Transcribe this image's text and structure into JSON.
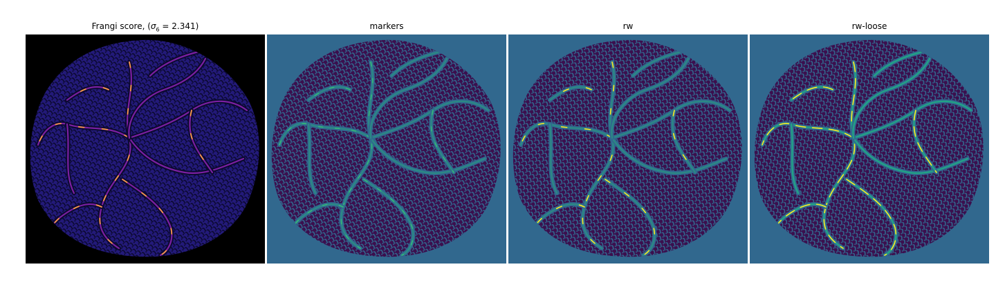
{
  "panels": [
    {
      "title_prefix": "Frangi score, (",
      "title_sigma": "σ",
      "title_sub": "6",
      "title_suffix": " = 2.341)",
      "background": "#000000",
      "tissue": "#231a7a",
      "texture": "#0b0930",
      "vessel": "#7b1fa2",
      "highlight": "#fca636"
    },
    {
      "title": "markers",
      "background": "#31688e",
      "tissue": "#3b0f4e",
      "texture": "#31688e",
      "vessel": "#2b8a84",
      "highlight": "#35b779"
    },
    {
      "title": "rw",
      "background": "#31688e",
      "tissue": "#3b0f4e",
      "texture": "#31688e",
      "vessel": "#2b8a84",
      "highlight": "#fde725"
    },
    {
      "title": "rw-loose",
      "background": "#31688e",
      "tissue": "#3b0f4e",
      "texture": "#31688e",
      "vessel": "#21a585",
      "highlight": "#fde725"
    }
  ]
}
